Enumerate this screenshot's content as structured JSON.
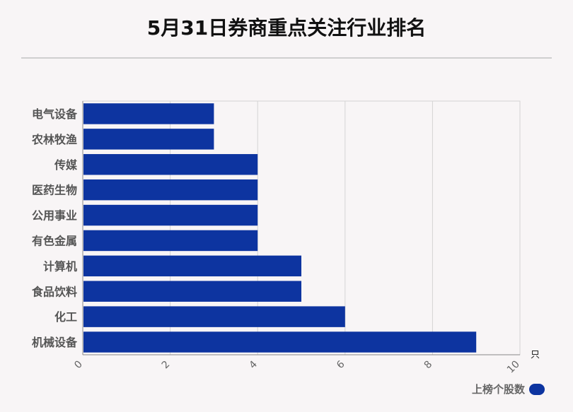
{
  "header": {
    "title": "5月31日券商重点关注行业排名"
  },
  "legend": {
    "label": "上榜个股数",
    "color": "#0d34a0"
  },
  "chart_data": {
    "type": "bar",
    "orientation": "horizontal",
    "title": "5月31日券商重点关注行业排名",
    "categories": [
      "电气设备",
      "农林牧渔",
      "传媒",
      "医药生物",
      "公用事业",
      "有色金属",
      "计算机",
      "食品饮料",
      "化工",
      "机械设备"
    ],
    "series": [
      {
        "name": "上榜个股数",
        "values": [
          3,
          3,
          4,
          4,
          4,
          4,
          5,
          5,
          6,
          9
        ]
      }
    ],
    "xlim": [
      0,
      10
    ],
    "xticks": [
      0,
      2,
      4,
      6,
      8,
      10
    ],
    "xunit": "只",
    "grid": true,
    "legend_position": "bottom-right",
    "bar_color": "#0d34a0"
  }
}
